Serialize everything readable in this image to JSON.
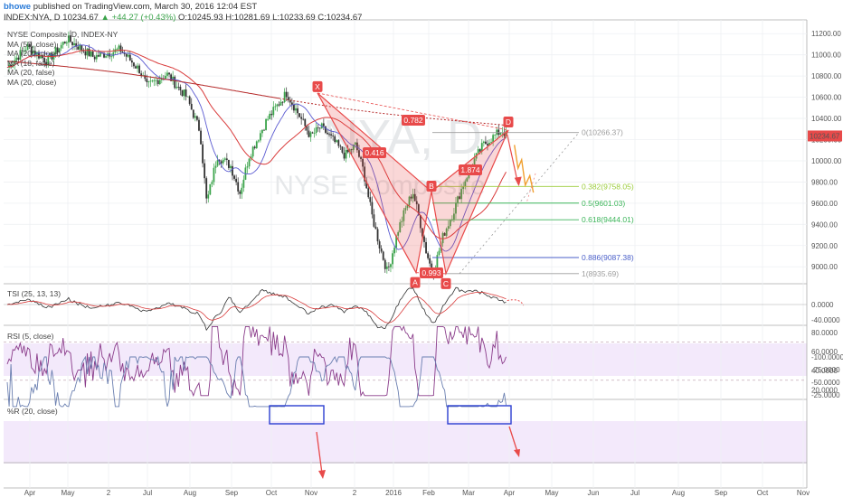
{
  "header": {
    "user": "bhowe",
    "published": "published on TradingView.com, March 30, 2016 12:04 EST"
  },
  "symbol": {
    "name": "INDEX:NYA, D",
    "last": "10234.67",
    "change": "▲ +44.27 (+0.43%)",
    "ohlc": "O:10245.93 H:10281.69 L:10233.69 C:10234.67"
  },
  "legend": {
    "title": "NYSE Composite, D, INDEX-NY",
    "items": [
      "MA (50, close)",
      "MA (200, close)",
      "MA (18, false)",
      "MA (20, false)",
      "MA (20, close)"
    ]
  },
  "watermark": {
    "symbol": "NYA, D",
    "name": "NYSE Composite"
  },
  "panels": {
    "tsi": {
      "label": "TSI (25, 13, 13)",
      "ticks": [
        "0.0000",
        "-40.0000"
      ]
    },
    "rsi": {
      "label": "RSI (5, close)",
      "ticks": [
        "80.0000",
        "60.0000",
        "40.0000",
        "20.0000"
      ]
    },
    "wr": {
      "label": "%R (20, close)",
      "ticks": [
        "-25.0000",
        "-50.0000",
        "-75.0000",
        "-100.0000"
      ]
    }
  },
  "chart_data": {
    "type": "line",
    "xticks": [
      "Apr",
      "May",
      "2",
      "Jul",
      "Aug",
      "Sep",
      "Oct",
      "Nov",
      "2",
      "2016",
      "Feb",
      "Mar",
      "Apr",
      "May",
      "Jun",
      "Jul",
      "Aug",
      "Sep",
      "Oct",
      "Nov"
    ],
    "price_ticks": [
      "11200.00",
      "11000.00",
      "10800.00",
      "10600.00",
      "10400.00",
      "10200.00",
      "10000.00",
      "9800.00",
      "9600.00",
      "9400.00",
      "9200.00",
      "9000.00"
    ],
    "ylim": [
      8840,
      11330
    ],
    "last_price_label": "10234.67",
    "pattern_points": [
      {
        "label": "X",
        "price": 10640
      },
      {
        "label": "A",
        "price": 8945
      },
      {
        "label": "B",
        "price": 9710
      },
      {
        "label": "C",
        "price": 8935
      },
      {
        "label": "D",
        "price": 10290
      }
    ],
    "pattern_ratios": [
      "0.782",
      "0.416",
      "0.993",
      "1.874"
    ],
    "fib_levels": [
      {
        "ratio": "0",
        "label": "0(10266.37)",
        "value": 10266.37,
        "color": "#9e9e9e"
      },
      {
        "ratio": "0.382",
        "label": "0.382(9758.05)",
        "value": 9758.05,
        "color": "#9ccc3a"
      },
      {
        "ratio": "0.5",
        "label": "0.5(9601.03)",
        "value": 9601.03,
        "color": "#3cb55a"
      },
      {
        "ratio": "0.618",
        "label": "0.618(9444.01)",
        "value": 9444.01,
        "color": "#3cb55a"
      },
      {
        "ratio": "0.886",
        "label": "0.886(9087.38)",
        "value": 9087.38,
        "color": "#4a5fc9"
      },
      {
        "ratio": "1",
        "label": "1(8935.69)",
        "value": 8935.69,
        "color": "#9e9e9e"
      }
    ],
    "colors": {
      "pattern": "#e84a4a",
      "ma50": "#d93b3b",
      "ma200": "#b52a2a",
      "ma20": "#5a5ad1",
      "up": "#3aa34a",
      "down": "#333333",
      "rsi": "#8a3c8a",
      "wr": "#6a7fb0",
      "projection": "#f0a030"
    }
  }
}
